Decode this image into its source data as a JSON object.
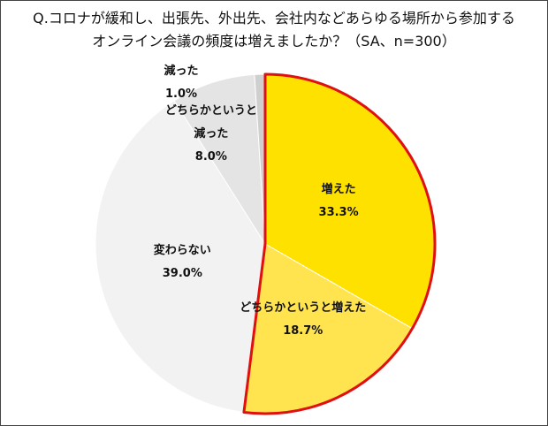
{
  "chart_data": {
    "type": "pie",
    "title": "Q.コロナが緩和し、出張先、外出先、会社内などあらゆる場所から参加する\nオンライン会議の頻度は増えましたか？（SA、n=300）",
    "categories": [
      "増えた",
      "どちらかというと増えた",
      "変わらない",
      "どちらかというと\n減った",
      "減った"
    ],
    "values": [
      33.3,
      18.7,
      39.0,
      8.0,
      1.0
    ],
    "value_labels": [
      "33.3%",
      "18.7%",
      "39.0%",
      "8.0%",
      "1.0%"
    ],
    "colors": [
      "#ffe100",
      "#ffe34f",
      "#f2f2f2",
      "#e4e4e4",
      "#cfcfcf"
    ],
    "outline": {
      "slices": [
        0,
        1
      ],
      "color": "#e01010"
    }
  }
}
